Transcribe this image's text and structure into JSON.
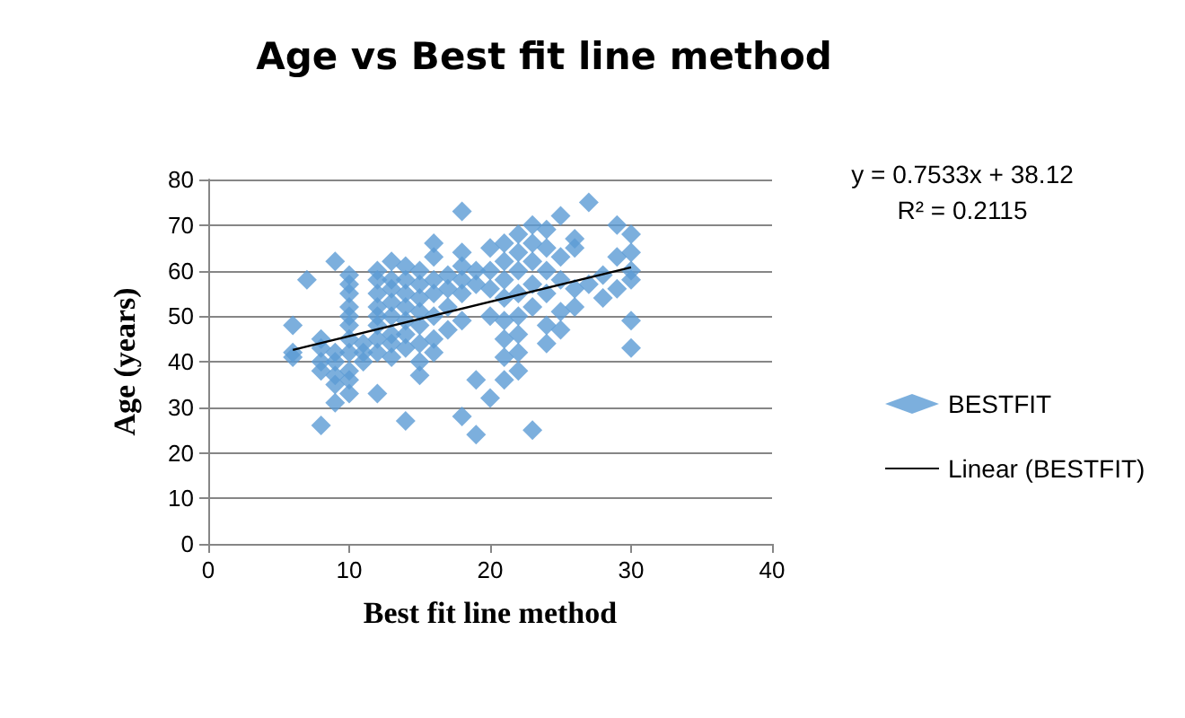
{
  "chart_data": {
    "type": "scatter",
    "title": "Age vs Best fit line method",
    "xlabel": "Best fit line method",
    "ylabel": "Age (years)",
    "xlim": [
      0,
      40
    ],
    "xticks": [
      0,
      10,
      20,
      30,
      40
    ],
    "ylim": [
      0,
      80
    ],
    "yticks": [
      0,
      10,
      20,
      30,
      40,
      50,
      60,
      70,
      80
    ],
    "grid": "y",
    "legend": "right",
    "marker": "diamond",
    "annotations": [
      "y = 0.7533x + 38.12",
      "R² = 0.2115"
    ],
    "series": [
      {
        "name": "BESTFIT",
        "color": "#5b9bd5",
        "type": "scatter",
        "x": [
          6,
          6,
          6,
          7,
          8,
          8,
          8,
          8,
          8,
          9,
          9,
          9,
          9,
          9,
          9,
          10,
          10,
          10,
          10,
          10,
          10,
          10,
          10,
          10,
          10,
          10,
          11,
          11,
          11,
          12,
          12,
          12,
          12,
          12,
          12,
          12,
          12,
          12,
          13,
          13,
          13,
          13,
          13,
          13,
          13,
          13,
          14,
          14,
          14,
          14,
          14,
          14,
          14,
          14,
          15,
          15,
          15,
          15,
          15,
          15,
          15,
          15,
          16,
          16,
          16,
          16,
          16,
          16,
          16,
          17,
          17,
          17,
          17,
          18,
          18,
          18,
          18,
          18,
          18,
          18,
          19,
          19,
          19,
          19,
          20,
          20,
          20,
          20,
          20,
          21,
          21,
          21,
          21,
          21,
          21,
          21,
          21,
          22,
          22,
          22,
          22,
          22,
          22,
          22,
          22,
          23,
          23,
          23,
          23,
          23,
          23,
          24,
          24,
          24,
          24,
          24,
          24,
          25,
          25,
          25,
          25,
          25,
          26,
          26,
          26,
          26,
          27,
          27,
          28,
          28,
          29,
          29,
          29,
          30,
          30,
          30,
          30,
          30,
          30
        ],
        "values": [
          41,
          42,
          48,
          58,
          26,
          38,
          40,
          43,
          45,
          31,
          35,
          37,
          40,
          42,
          62,
          33,
          36,
          38,
          42,
          45,
          48,
          50,
          52,
          55,
          57,
          59,
          40,
          42,
          44,
          33,
          42,
          45,
          48,
          50,
          52,
          55,
          58,
          60,
          41,
          44,
          46,
          50,
          53,
          56,
          58,
          62,
          27,
          43,
          46,
          49,
          52,
          55,
          58,
          61,
          37,
          40,
          44,
          48,
          51,
          54,
          57,
          60,
          42,
          45,
          50,
          55,
          58,
          63,
          66,
          47,
          52,
          56,
          59,
          28,
          49,
          55,
          58,
          61,
          64,
          73,
          24,
          36,
          57,
          60,
          32,
          50,
          56,
          60,
          65,
          36,
          41,
          45,
          49,
          54,
          58,
          62,
          66,
          38,
          42,
          46,
          50,
          55,
          60,
          64,
          68,
          25,
          52,
          57,
          62,
          66,
          70,
          44,
          48,
          55,
          60,
          65,
          69,
          47,
          51,
          58,
          63,
          72,
          52,
          56,
          65,
          67,
          57,
          75,
          54,
          59,
          56,
          63,
          70,
          43,
          49,
          58,
          60,
          64,
          68
        ]
      },
      {
        "name": "Linear (BESTFIT)",
        "color": "#000000",
        "type": "line",
        "line_style": "solid",
        "marker": "none",
        "x": [
          6,
          30
        ],
        "values": [
          42.6,
          60.7
        ]
      }
    ]
  }
}
